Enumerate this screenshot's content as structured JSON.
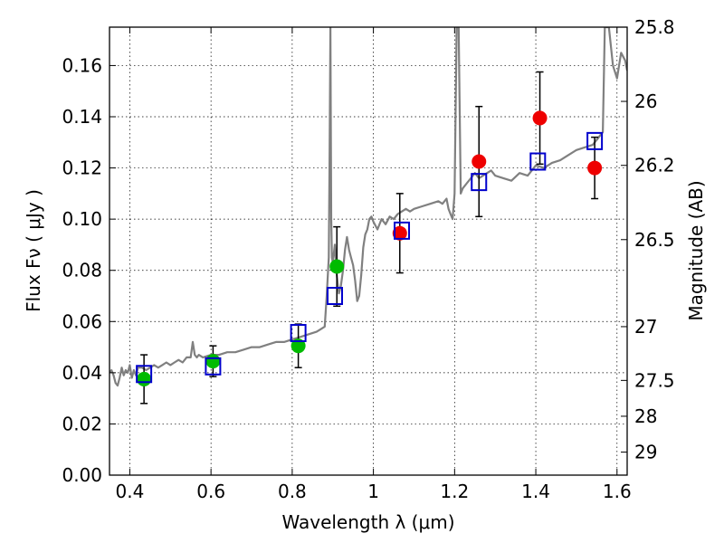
{
  "chart_data": {
    "type": "scatter",
    "xlabel": "Wavelength  λ (μm)",
    "ylabel": "Flux  Fν  ( μJy )",
    "y2label": "Magnitude (AB)",
    "xlim": [
      0.35,
      1.625
    ],
    "ylim": [
      0.0,
      0.175
    ],
    "xticks": [
      0.4,
      0.6,
      0.8,
      1.0,
      1.2,
      1.4,
      1.6
    ],
    "xtick_labels": [
      "0.4",
      "0.6",
      "0.8",
      "1",
      "1.2",
      "1.4",
      "1.6"
    ],
    "yticks": [
      0.0,
      0.02,
      0.04,
      0.06,
      0.08,
      0.1,
      0.12,
      0.14,
      0.16
    ],
    "ytick_labels": [
      "0.00",
      "0.02",
      "0.04",
      "0.06",
      "0.08",
      "0.10",
      "0.12",
      "0.14",
      "0.16"
    ],
    "y2_ticks": [
      {
        "label": "25.8",
        "flux": 0.175
      },
      {
        "label": "26",
        "flux": 0.146
      },
      {
        "label": "26.2",
        "flux": 0.121
      },
      {
        "label": "26.5",
        "flux": 0.092
      },
      {
        "label": "27",
        "flux": 0.058
      },
      {
        "label": "27.5",
        "flux": 0.037
      },
      {
        "label": "28",
        "flux": 0.023
      },
      {
        "label": "29",
        "flux": 0.009
      }
    ],
    "grid": true,
    "colors": {
      "model_spectrum": "#808080",
      "photometry_green": "#00bb00",
      "photometry_red": "#ee0000",
      "synthetic_photometry": "#0000cc",
      "error_bars": "#000000"
    },
    "series": [
      {
        "kind": "line",
        "x": [
          0.35,
          0.355,
          0.36,
          0.365,
          0.37,
          0.375,
          0.38,
          0.385,
          0.39,
          0.395,
          0.4,
          0.405,
          0.41,
          0.415,
          0.42,
          0.43,
          0.44,
          0.45,
          0.46,
          0.47,
          0.48,
          0.49,
          0.5,
          0.51,
          0.52,
          0.53,
          0.54,
          0.55,
          0.555,
          0.56,
          0.565,
          0.57,
          0.58,
          0.6,
          0.62,
          0.64,
          0.66,
          0.68,
          0.7,
          0.72,
          0.74,
          0.76,
          0.78,
          0.8,
          0.82,
          0.84,
          0.86,
          0.87,
          0.88,
          0.885,
          0.89,
          0.892,
          0.894,
          0.896,
          0.898,
          0.9,
          0.905,
          0.91,
          0.915,
          0.92,
          0.925,
          0.93,
          0.935,
          0.94,
          0.945,
          0.95,
          0.955,
          0.96,
          0.965,
          0.97,
          0.975,
          0.98,
          0.985,
          0.99,
          0.995,
          1.0,
          1.01,
          1.02,
          1.03,
          1.04,
          1.05,
          1.06,
          1.07,
          1.08,
          1.09,
          1.1,
          1.12,
          1.14,
          1.16,
          1.17,
          1.18,
          1.185,
          1.19,
          1.195,
          1.2,
          1.205,
          1.21,
          1.215,
          1.22,
          1.23,
          1.24,
          1.25,
          1.26,
          1.27,
          1.28,
          1.29,
          1.3,
          1.32,
          1.34,
          1.36,
          1.38,
          1.4,
          1.42,
          1.44,
          1.46,
          1.48,
          1.5,
          1.52,
          1.54,
          1.55,
          1.56,
          1.565,
          1.57,
          1.575,
          1.58,
          1.59,
          1.6,
          1.61,
          1.62,
          1.625
        ],
        "y": [
          0.04,
          0.041,
          0.039,
          0.036,
          0.035,
          0.038,
          0.042,
          0.039,
          0.041,
          0.04,
          0.043,
          0.038,
          0.041,
          0.039,
          0.042,
          0.042,
          0.041,
          0.042,
          0.043,
          0.042,
          0.043,
          0.044,
          0.043,
          0.044,
          0.045,
          0.044,
          0.046,
          0.046,
          0.052,
          0.047,
          0.046,
          0.047,
          0.046,
          0.047,
          0.047,
          0.048,
          0.048,
          0.049,
          0.05,
          0.05,
          0.051,
          0.052,
          0.052,
          0.053,
          0.054,
          0.055,
          0.056,
          0.057,
          0.058,
          0.07,
          0.085,
          0.125,
          0.175,
          0.1,
          0.085,
          0.083,
          0.09,
          0.078,
          0.071,
          0.074,
          0.08,
          0.088,
          0.093,
          0.088,
          0.085,
          0.082,
          0.076,
          0.068,
          0.07,
          0.078,
          0.089,
          0.094,
          0.096,
          0.1,
          0.101,
          0.099,
          0.096,
          0.1,
          0.098,
          0.101,
          0.1,
          0.102,
          0.103,
          0.104,
          0.103,
          0.104,
          0.105,
          0.106,
          0.107,
          0.106,
          0.108,
          0.104,
          0.102,
          0.1,
          0.11,
          0.175,
          0.175,
          0.11,
          0.112,
          0.114,
          0.116,
          0.118,
          0.116,
          0.117,
          0.118,
          0.119,
          0.117,
          0.116,
          0.115,
          0.118,
          0.117,
          0.121,
          0.12,
          0.122,
          0.123,
          0.125,
          0.127,
          0.128,
          0.129,
          0.131,
          0.133,
          0.134,
          0.175,
          0.175,
          0.175,
          0.16,
          0.155,
          0.165,
          0.162,
          0.158
        ]
      },
      {
        "kind": "points",
        "marker": "circle",
        "color": "#00bb00",
        "x": [
          0.435,
          0.605,
          0.815,
          0.91
        ],
        "y": [
          0.0375,
          0.0445,
          0.0505,
          0.0815
        ],
        "yerr": [
          0.0095,
          0.006,
          0.0085,
          0.0155
        ]
      },
      {
        "kind": "points",
        "marker": "circle",
        "color": "#ee0000",
        "x": [
          1.065,
          1.26,
          1.41,
          1.545
        ],
        "y": [
          0.0945,
          0.1225,
          0.1395,
          0.12
        ],
        "yerr": [
          0.0155,
          0.0215,
          0.018,
          0.012
        ]
      },
      {
        "kind": "points",
        "marker": "square",
        "color": "#0000cc",
        "x": [
          0.435,
          0.605,
          0.815,
          0.905,
          1.07,
          1.26,
          1.405,
          1.545
        ],
        "y": [
          0.0395,
          0.0425,
          0.0555,
          0.07,
          0.0955,
          0.1145,
          0.1225,
          0.1305
        ]
      }
    ]
  }
}
